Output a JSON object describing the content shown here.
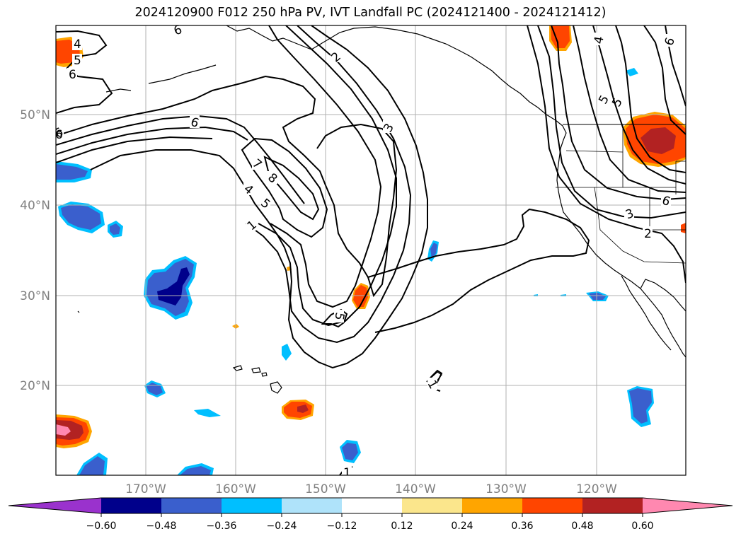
{
  "title": "2024120900 F012 250 hPa PV, IVT Landfall PC (2024121400 - 2024121412)",
  "map": {
    "lat_labels": [
      "50°N",
      "40°N",
      "30°N",
      "20°N"
    ],
    "lon_labels": [
      "170°W",
      "160°W",
      "150°W",
      "140°W",
      "130°W",
      "120°W"
    ],
    "contour_labels": [
      "4",
      "5",
      "6",
      "6",
      "5",
      "6",
      "6",
      "2",
      "3",
      "7",
      "8",
      "4",
      "5",
      "1",
      "5",
      "1",
      "1",
      "6",
      "4",
      "5",
      "3",
      "6",
      "2",
      "6"
    ]
  },
  "colorbar": {
    "ticks": [
      "−0.60",
      "−0.48",
      "−0.36",
      "−0.24",
      "−0.12",
      "0.12",
      "0.24",
      "0.36",
      "0.48",
      "0.60"
    ],
    "colors": [
      "#9a32cd",
      "#00008b",
      "#3a5fcd",
      "#00bfff",
      "#afe3fa",
      "#ffffff",
      "#fbe68c",
      "#ffa500",
      "#ff4500",
      "#b22222",
      "#ff88b0"
    ]
  },
  "field_colors": {
    "pos_strong": "#ff4500",
    "pos_darker": "#b22222",
    "pos_edge": "#ffa500",
    "neg_light": "#00bfff",
    "neg_mid": "#3a5fcd",
    "neg_dark": "#00008b",
    "pink": "#ff88b0"
  }
}
